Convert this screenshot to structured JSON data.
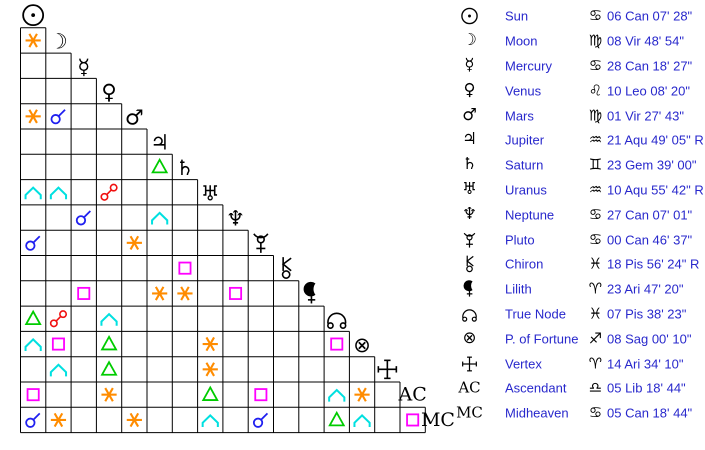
{
  "chart_data": {
    "type": "table",
    "title": "Natal chart aspect grid and planet positions",
    "bodies": [
      {
        "glyph": "sun",
        "name": "Sun",
        "sign": "Can",
        "position": "06 Can 07' 28\""
      },
      {
        "glyph": "moon",
        "name": "Moon",
        "sign": "Vir",
        "position": "08 Vir 48' 54\""
      },
      {
        "glyph": "mercury",
        "name": "Mercury",
        "sign": "Can",
        "position": "28 Can 18' 27\""
      },
      {
        "glyph": "venus",
        "name": "Venus",
        "sign": "Leo",
        "position": "10 Leo 08' 20\""
      },
      {
        "glyph": "mars",
        "name": "Mars",
        "sign": "Vir",
        "position": "01 Vir 27' 43\""
      },
      {
        "glyph": "jupiter",
        "name": "Jupiter",
        "sign": "Aqu",
        "position": "21 Aqu 49' 05\" R"
      },
      {
        "glyph": "saturn",
        "name": "Saturn",
        "sign": "Gem",
        "position": "23 Gem 39' 00\""
      },
      {
        "glyph": "uranus",
        "name": "Uranus",
        "sign": "Aqu",
        "position": "10 Aqu 55' 42\" R"
      },
      {
        "glyph": "neptune",
        "name": "Neptune",
        "sign": "Can",
        "position": "27 Can 07' 01\""
      },
      {
        "glyph": "pluto",
        "name": "Pluto",
        "sign": "Can",
        "position": "00 Can 46' 37\""
      },
      {
        "glyph": "chiron",
        "name": "Chiron",
        "sign": "Pis",
        "position": "18 Pis 56' 24\" R"
      },
      {
        "glyph": "lilith",
        "name": "Lilith",
        "sign": "Ari",
        "position": "23 Ari 47' 20\""
      },
      {
        "glyph": "true-node",
        "name": "True Node",
        "sign": "Pis",
        "position": "07 Pis 38' 23\""
      },
      {
        "glyph": "fortune",
        "name": "P. of Fortune",
        "sign": "Sag",
        "position": "08 Sag 00' 10\""
      },
      {
        "glyph": "vertex",
        "name": "Vertex",
        "sign": "Ari",
        "position": "14 Ari 34' 10\""
      },
      {
        "glyph": "ac",
        "name": "Ascendant",
        "sign": "Lib",
        "position": "05 Lib 18' 44\""
      },
      {
        "glyph": "mc",
        "name": "Midheaven",
        "sign": "Can",
        "position": "05 Can 18' 44\""
      }
    ],
    "aspects": [
      {
        "row": 1,
        "col": 0,
        "type": "sextile"
      },
      {
        "row": 4,
        "col": 0,
        "type": "sextile"
      },
      {
        "row": 4,
        "col": 1,
        "type": "conjunction"
      },
      {
        "row": 6,
        "col": 5,
        "type": "trine"
      },
      {
        "row": 7,
        "col": 0,
        "type": "quincunx"
      },
      {
        "row": 7,
        "col": 1,
        "type": "quincunx"
      },
      {
        "row": 7,
        "col": 3,
        "type": "opposition"
      },
      {
        "row": 8,
        "col": 2,
        "type": "conjunction"
      },
      {
        "row": 8,
        "col": 5,
        "type": "quincunx"
      },
      {
        "row": 9,
        "col": 0,
        "type": "conjunction"
      },
      {
        "row": 9,
        "col": 4,
        "type": "sextile"
      },
      {
        "row": 10,
        "col": 6,
        "type": "square"
      },
      {
        "row": 11,
        "col": 2,
        "type": "square"
      },
      {
        "row": 11,
        "col": 5,
        "type": "sextile"
      },
      {
        "row": 11,
        "col": 6,
        "type": "sextile"
      },
      {
        "row": 11,
        "col": 8,
        "type": "square"
      },
      {
        "row": 12,
        "col": 0,
        "type": "trine"
      },
      {
        "row": 12,
        "col": 1,
        "type": "opposition"
      },
      {
        "row": 12,
        "col": 3,
        "type": "quincunx"
      },
      {
        "row": 13,
        "col": 0,
        "type": "quincunx"
      },
      {
        "row": 13,
        "col": 1,
        "type": "square"
      },
      {
        "row": 13,
        "col": 3,
        "type": "trine"
      },
      {
        "row": 13,
        "col": 7,
        "type": "sextile"
      },
      {
        "row": 13,
        "col": 12,
        "type": "square"
      },
      {
        "row": 14,
        "col": 1,
        "type": "quincunx"
      },
      {
        "row": 14,
        "col": 3,
        "type": "trine"
      },
      {
        "row": 14,
        "col": 7,
        "type": "sextile"
      },
      {
        "row": 15,
        "col": 0,
        "type": "square"
      },
      {
        "row": 15,
        "col": 3,
        "type": "sextile"
      },
      {
        "row": 15,
        "col": 7,
        "type": "trine"
      },
      {
        "row": 15,
        "col": 9,
        "type": "square"
      },
      {
        "row": 15,
        "col": 12,
        "type": "quincunx"
      },
      {
        "row": 15,
        "col": 13,
        "type": "sextile"
      },
      {
        "row": 16,
        "col": 0,
        "type": "conjunction"
      },
      {
        "row": 16,
        "col": 1,
        "type": "sextile"
      },
      {
        "row": 16,
        "col": 4,
        "type": "sextile"
      },
      {
        "row": 16,
        "col": 7,
        "type": "quincunx"
      },
      {
        "row": 16,
        "col": 9,
        "type": "conjunction"
      },
      {
        "row": 16,
        "col": 12,
        "type": "trine"
      },
      {
        "row": 16,
        "col": 13,
        "type": "quincunx"
      },
      {
        "row": 16,
        "col": 15,
        "type": "square"
      }
    ],
    "aspect_colors": {
      "conjunction": "#2020f0",
      "sextile": "#ff8c00",
      "square": "#ff00ff",
      "trine": "#00cc00",
      "opposition": "#f01010",
      "quincunx": "#00e0e0"
    },
    "axis_labels": {
      "ac": "AC",
      "mc": "MC"
    },
    "colors": {
      "text_blue": "#2828cc",
      "glyph_black": "#000000",
      "grid_line": "#000000",
      "background": "#ffffff"
    }
  }
}
